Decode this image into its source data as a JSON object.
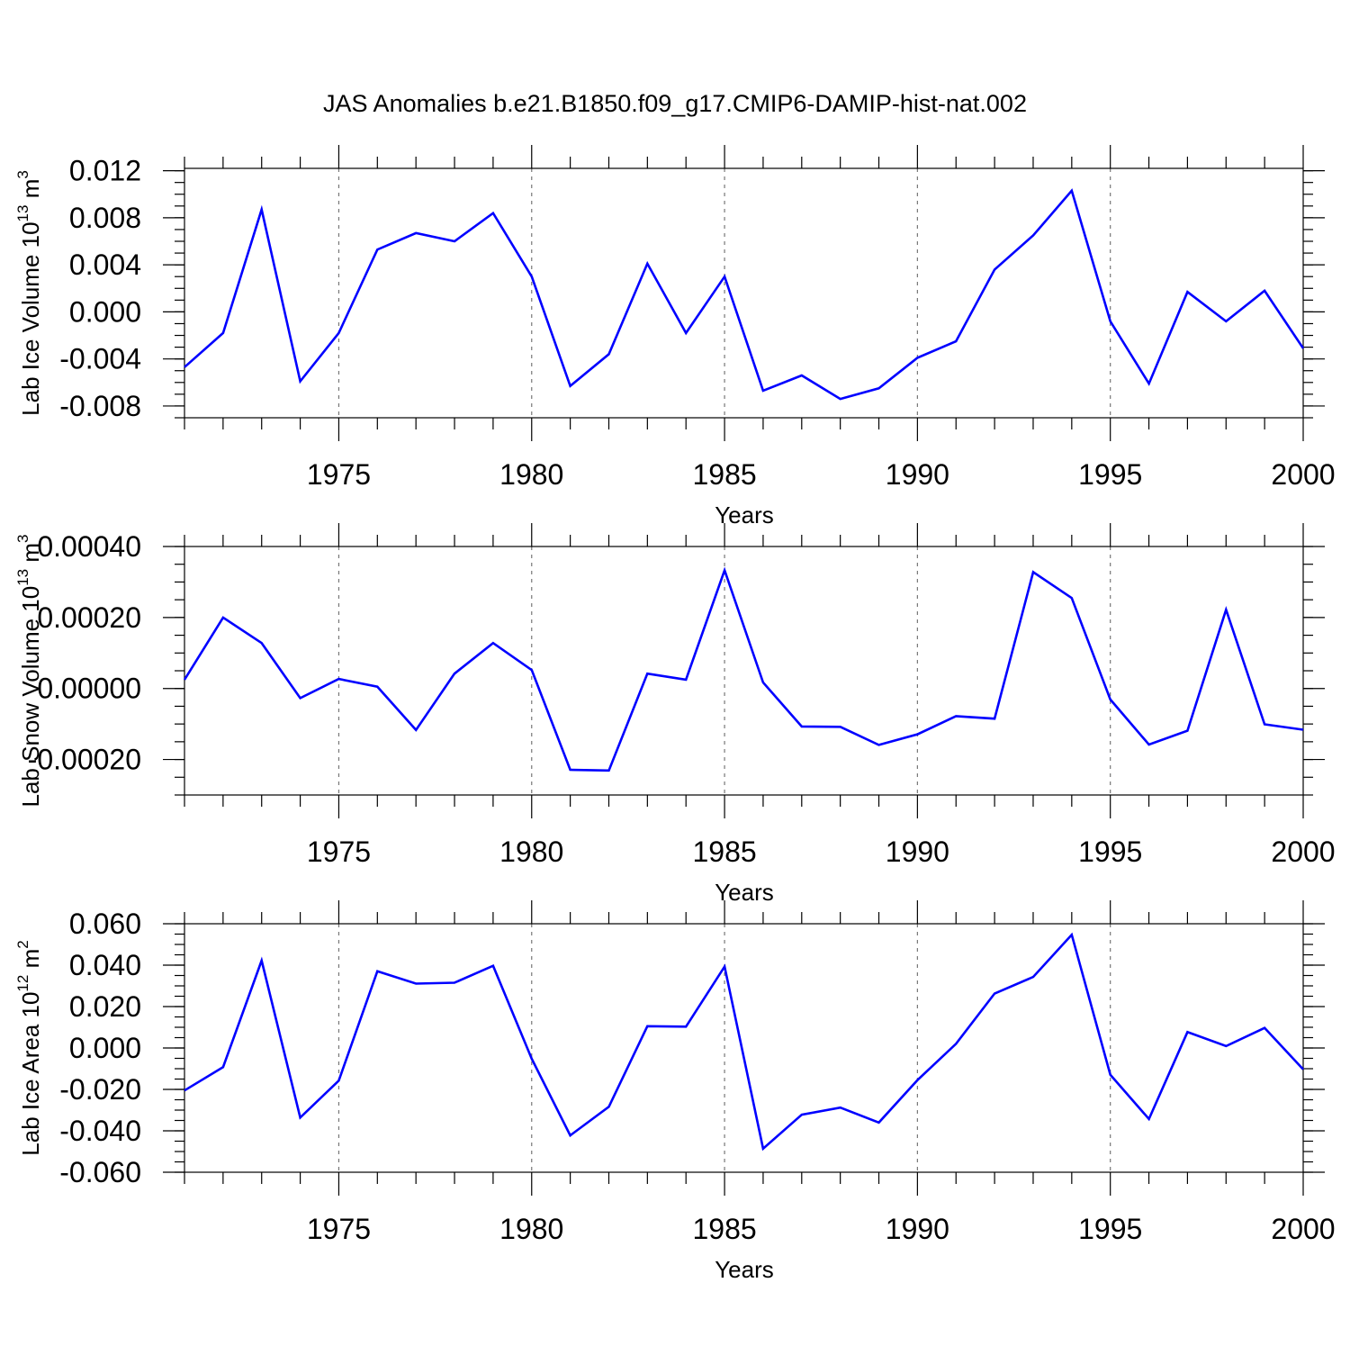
{
  "figure": {
    "title": "JAS Anomalies b.e21.B1850.f09_g17.CMIP6-DAMIP-hist-nat.002"
  },
  "colors": {
    "line": "#0000ff",
    "axes": "#000000",
    "grid": "#777777"
  },
  "chart_data": [
    {
      "type": "line",
      "name": "lab-ice-volume",
      "xlabel": "Years",
      "ylabel": "Lab Ice Volume 10",
      "ylabel_exp": "13",
      "ylabel_unit": " m",
      "ylabel_unit_exp": "3",
      "xlim": [
        1971,
        2000
      ],
      "ylim": [
        -0.009,
        0.0122
      ],
      "yticks": [
        0.012,
        0.008,
        0.004,
        0.0,
        -0.004,
        -0.008
      ],
      "ytick_labels": [
        "0.012",
        "0.008",
        "0.004",
        "0.000",
        "-0.004",
        "-0.008"
      ],
      "yminor_step": 0.001,
      "xticks": [
        1975,
        1980,
        1985,
        1990,
        1995,
        2000
      ],
      "xtick_labels": [
        "1975",
        "1980",
        "1985",
        "1990",
        "1995",
        "2000"
      ],
      "x": [
        1971,
        1972,
        1973,
        1974,
        1975,
        1976,
        1977,
        1978,
        1979,
        1980,
        1981,
        1982,
        1983,
        1984,
        1985,
        1986,
        1987,
        1988,
        1989,
        1990,
        1991,
        1992,
        1993,
        1994,
        1995,
        1996,
        1997,
        1998,
        1999,
        2000
      ],
      "y": [
        -0.0047,
        -0.0018,
        0.0087,
        -0.0059,
        -0.0018,
        0.0053,
        0.0067,
        0.006,
        0.0084,
        0.003,
        -0.0063,
        -0.0036,
        0.0041,
        -0.0018,
        0.003,
        -0.0067,
        -0.0054,
        -0.0074,
        -0.0065,
        -0.0039,
        -0.0025,
        0.0036,
        0.0065,
        0.0103,
        -0.0008,
        -0.0061,
        0.0017,
        -0.0008,
        0.0018,
        -0.0031
      ]
    },
    {
      "type": "line",
      "name": "lab-snow-volume",
      "xlabel": "Years",
      "ylabel": "Lab Snow Volume 10",
      "ylabel_exp": "13",
      "ylabel_unit": " m",
      "ylabel_unit_exp": "3",
      "xlim": [
        1971,
        2000
      ],
      "ylim": [
        -0.0003,
        0.0004
      ],
      "yticks": [
        0.0004,
        0.0002,
        0.0,
        -0.0002
      ],
      "ytick_labels": [
        "0.00040",
        "0.00020",
        "0.00000",
        "-0.00020"
      ],
      "yminor_step": 5e-05,
      "xticks": [
        1975,
        1980,
        1985,
        1990,
        1995,
        2000
      ],
      "xtick_labels": [
        "1975",
        "1980",
        "1985",
        "1990",
        "1995",
        "2000"
      ],
      "x": [
        1971,
        1972,
        1973,
        1974,
        1975,
        1976,
        1977,
        1978,
        1979,
        1980,
        1981,
        1982,
        1983,
        1984,
        1985,
        1986,
        1987,
        1988,
        1989,
        1990,
        1991,
        1992,
        1993,
        1994,
        1995,
        1996,
        1997,
        1998,
        1999,
        2000
      ],
      "y": [
        2.5e-05,
        0.0002,
        0.000128,
        -2.7e-05,
        2.7e-05,
        5e-06,
        -0.000117,
        4.2e-05,
        0.000128,
        5.2e-05,
        -0.000229,
        -0.000231,
        4.2e-05,
        2.5e-05,
        0.000333,
        1.7e-05,
        -0.000107,
        -0.000108,
        -0.000159,
        -0.000129,
        -7.8e-05,
        -8.5e-05,
        0.000328,
        0.000255,
        -3.1e-05,
        -0.000158,
        -0.000119,
        0.000222,
        -0.000101,
        -0.000116
      ]
    },
    {
      "type": "line",
      "name": "lab-ice-area",
      "xlabel": "Years",
      "ylabel": "Lab Ice Area 10",
      "ylabel_exp": "12",
      "ylabel_unit": " m",
      "ylabel_unit_exp": "2",
      "xlim": [
        1971,
        2000
      ],
      "ylim": [
        -0.06,
        0.06
      ],
      "yticks": [
        0.06,
        0.04,
        0.02,
        0.0,
        -0.02,
        -0.04,
        -0.06
      ],
      "ytick_labels": [
        "0.060",
        "0.040",
        "0.020",
        "0.000",
        "-0.020",
        "-0.040",
        "-0.060"
      ],
      "yminor_step": 0.005,
      "xticks": [
        1975,
        1980,
        1985,
        1990,
        1995,
        2000
      ],
      "xtick_labels": [
        "1975",
        "1980",
        "1985",
        "1990",
        "1995",
        "2000"
      ],
      "x": [
        1971,
        1972,
        1973,
        1974,
        1975,
        1976,
        1977,
        1978,
        1979,
        1980,
        1981,
        1982,
        1983,
        1984,
        1985,
        1986,
        1987,
        1988,
        1989,
        1990,
        1991,
        1992,
        1993,
        1994,
        1995,
        1996,
        1997,
        1998,
        1999,
        2000
      ],
      "y": [
        -0.0205,
        -0.0092,
        0.0422,
        -0.0336,
        -0.0158,
        0.0371,
        0.0311,
        0.0315,
        0.0397,
        -0.0052,
        -0.0422,
        -0.0284,
        0.0105,
        0.0103,
        0.0393,
        -0.0486,
        -0.0322,
        -0.0288,
        -0.036,
        -0.0155,
        0.002,
        0.0263,
        0.0343,
        0.0547,
        -0.0129,
        -0.0343,
        0.0077,
        0.0009,
        0.0097,
        -0.0103
      ]
    }
  ]
}
